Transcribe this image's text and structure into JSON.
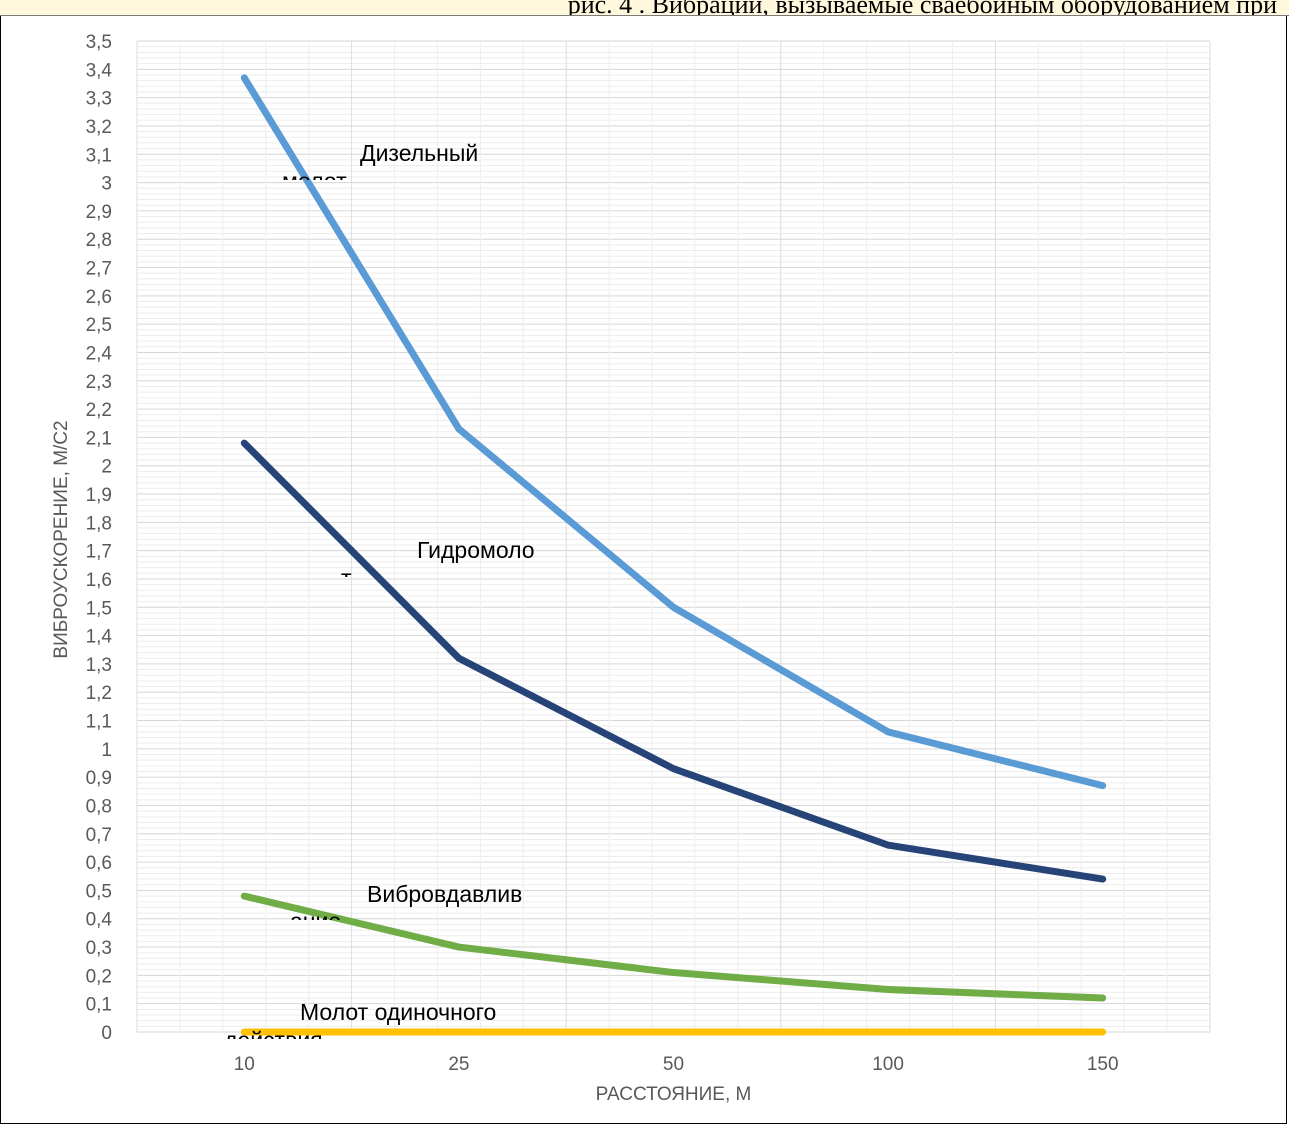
{
  "header": {
    "strip_text": "рис. 4 . Вибрации, вызываемые сваебойным оборудованием при"
  },
  "chart_data": {
    "type": "line",
    "xlabel": "РАССТОЯНИЕ, М",
    "ylabel": "ВИБРОУСКОРЕНИЕ, М/С2",
    "categories": [
      "10",
      "25",
      "50",
      "100",
      "150"
    ],
    "ylim": [
      0,
      3.5
    ],
    "ytick_step": 0.1,
    "yticks": [
      "0",
      "0,1",
      "0,2",
      "0,3",
      "0,4",
      "0,5",
      "0,6",
      "0,7",
      "0,8",
      "0,9",
      "1",
      "1,1",
      "1,2",
      "1,3",
      "1,4",
      "1,5",
      "1,6",
      "1,7",
      "1,8",
      "1,9",
      "2",
      "2,1",
      "2,2",
      "2,3",
      "2,4",
      "2,5",
      "2,6",
      "2,7",
      "2,8",
      "2,9",
      "3",
      "3,1",
      "3,2",
      "3,3",
      "3,4",
      "3,5"
    ],
    "grid": true,
    "series": [
      {
        "name": "Дизельный молот",
        "label_visible": "Дизельный",
        "label_clipped": "молот",
        "color": "#5b9bd5",
        "values": [
          3.37,
          2.13,
          1.5,
          1.06,
          0.87
        ]
      },
      {
        "name": "Гидромолот",
        "label_visible": "Гидромоло",
        "label_clipped": "т",
        "color": "#264478",
        "values": [
          2.08,
          1.32,
          0.93,
          0.66,
          0.54
        ]
      },
      {
        "name": "Вибровдавливание",
        "label_visible": "Вибровдавлив",
        "label_clipped": "ание",
        "color": "#70ad47",
        "values": [
          0.48,
          0.3,
          0.21,
          0.15,
          0.12
        ]
      },
      {
        "name": "Молот одиночного действия",
        "label_visible": "Молот    одиночного",
        "label_clipped": "действия",
        "color": "#ffc000",
        "values": [
          0.0,
          0.0,
          0.0,
          0.0,
          0.0
        ]
      }
    ]
  }
}
